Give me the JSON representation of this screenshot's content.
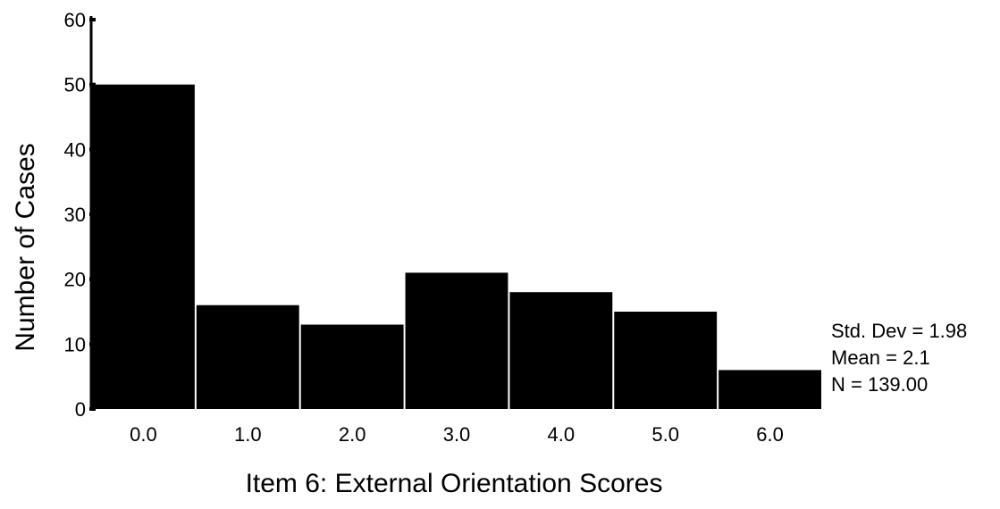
{
  "chart_data": {
    "type": "bar",
    "categories": [
      "0.0",
      "1.0",
      "2.0",
      "3.0",
      "4.0",
      "5.0",
      "6.0"
    ],
    "values": [
      50,
      16,
      13,
      21,
      18,
      15,
      6
    ],
    "xlabel": "Item 6: External Orientation Scores",
    "ylabel": "Number of Cases",
    "ylim": [
      0,
      60
    ],
    "yticks": [
      "0",
      "10",
      "20",
      "30",
      "40",
      "50",
      "60"
    ],
    "grid": false,
    "bar_color": "#000000",
    "stats": {
      "std_dev": "Std. Dev = 1.98",
      "mean": "Mean = 2.1",
      "n": "N = 139.00"
    }
  }
}
